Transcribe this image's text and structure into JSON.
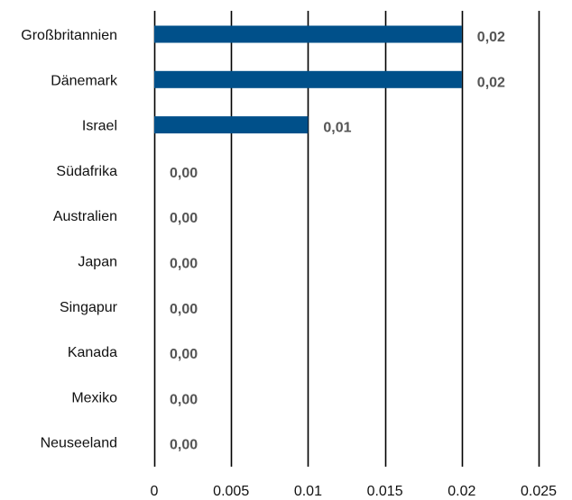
{
  "chart_data": {
    "type": "bar",
    "orientation": "horizontal",
    "categories": [
      "Großbritannien",
      "Dänemark",
      "Israel",
      "Südafrika",
      "Australien",
      "Japan",
      "Singapur",
      "Kanada",
      "Mexiko",
      "Neuseeland"
    ],
    "values": [
      0.02,
      0.02,
      0.01,
      0,
      0,
      0,
      0,
      0,
      0,
      0
    ],
    "data_labels": [
      "0,02",
      "0,02",
      "0,01",
      "0,00",
      "0,00",
      "0,00",
      "0,00",
      "0,00",
      "0,00",
      "0,00"
    ],
    "x_ticks": [
      0,
      0.005,
      0.01,
      0.015,
      0.02,
      0.025
    ],
    "x_tick_labels": [
      "0",
      "0.005",
      "0.01",
      "0.015",
      "0.02",
      "0.025"
    ],
    "xlim": [
      0,
      0.025
    ],
    "title": "",
    "xlabel": "",
    "ylabel": "",
    "grid": "vertical",
    "legend": "none",
    "bar_color": "#00508a",
    "gridline_color": "#000000",
    "data_label_color": "#555555"
  }
}
